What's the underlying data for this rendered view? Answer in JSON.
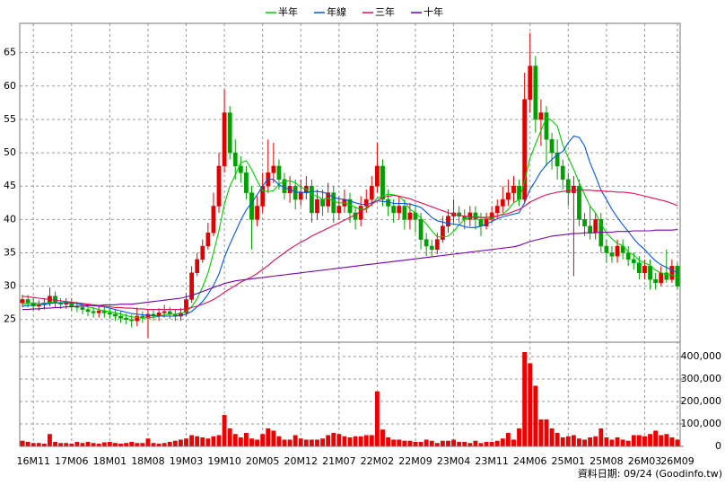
{
  "chart_data": {
    "type": "candlestick",
    "legend": "top",
    "grid": true,
    "up_color": "#e00000",
    "down_color": "#00a000",
    "categories": [
      null,
      null,
      "16M11",
      null,
      null,
      null,
      null,
      null,
      null,
      "17M06",
      null,
      null,
      null,
      null,
      null,
      null,
      "18M01",
      null,
      null,
      null,
      null,
      null,
      null,
      "18M08",
      null,
      null,
      null,
      null,
      null,
      null,
      "19M03",
      null,
      null,
      null,
      null,
      null,
      null,
      "19M10",
      null,
      null,
      null,
      null,
      null,
      null,
      "20M05",
      null,
      null,
      null,
      null,
      null,
      null,
      "20M12",
      null,
      null,
      null,
      null,
      null,
      null,
      "21M07",
      null,
      null,
      null,
      null,
      null,
      null,
      "22M02",
      null,
      null,
      null,
      null,
      null,
      null,
      "22M09",
      null,
      null,
      null,
      null,
      null,
      null,
      "23M04",
      null,
      null,
      null,
      null,
      null,
      null,
      "23M11",
      null,
      null,
      null,
      null,
      null,
      null,
      "24M06",
      null,
      null,
      null,
      null,
      null,
      null,
      "25M01",
      null,
      null,
      null,
      null,
      null,
      null,
      "25M08",
      null,
      null,
      null,
      null,
      null,
      null,
      "26M03",
      null,
      null,
      null,
      null,
      null,
      "26M09"
    ],
    "open": [
      27.5,
      28,
      27.5,
      27,
      27.2,
      27.5,
      28.5,
      27.5,
      27.3,
      27.5,
      27,
      26.8,
      26.5,
      26.2,
      26,
      26.3,
      26,
      25.8,
      25.5,
      25.2,
      25,
      24.8,
      25.5,
      25.2,
      25.8,
      25.5,
      26,
      26.2,
      25.8,
      25.5,
      26,
      28,
      32,
      34,
      36,
      38,
      42,
      48,
      56,
      50,
      48,
      47,
      44,
      40,
      42,
      45,
      47,
      48,
      46,
      44,
      45,
      43,
      44,
      45,
      41,
      43,
      42,
      44,
      41,
      42,
      43,
      41,
      40,
      42,
      43,
      45,
      48,
      43,
      42,
      41,
      42,
      40,
      41,
      40,
      37,
      36,
      35.5,
      37,
      39,
      40.5,
      41,
      40.5,
      40,
      41,
      40,
      39,
      40,
      41,
      42,
      43,
      44,
      45,
      43,
      58,
      63,
      55,
      56,
      52,
      50,
      48,
      46,
      44,
      45,
      40,
      39,
      38,
      40,
      36,
      35,
      34.5,
      36,
      35,
      34,
      33.5,
      32,
      33,
      31,
      30.5,
      32,
      31,
      33
    ],
    "high": [
      28.7,
      28.7,
      28.2,
      27.9,
      28.2,
      29.8,
      29.2,
      28.2,
      28.2,
      28.2,
      27.7,
      27.5,
      27.2,
      26.9,
      27,
      27,
      26.7,
      26.5,
      26.2,
      25.9,
      25.7,
      26.8,
      26.2,
      26.5,
      26.5,
      26.7,
      27.2,
      26.9,
      26.5,
      26.7,
      29,
      33,
      35,
      37,
      39.5,
      44,
      50,
      59.5,
      57,
      52,
      49.5,
      48,
      45,
      43.5,
      47,
      52,
      51.5,
      49,
      47,
      46.5,
      46,
      46,
      46.5,
      46,
      44.5,
      44.5,
      45.5,
      45,
      43.5,
      44.5,
      44,
      42,
      43.5,
      44.5,
      46.5,
      51.5,
      49,
      44.5,
      43,
      43.5,
      43,
      42.5,
      42,
      41,
      38,
      37,
      38,
      40.5,
      41.5,
      43,
      42,
      41.5,
      42,
      42,
      41,
      41,
      42,
      43,
      45,
      46,
      46.5,
      46,
      62,
      68,
      64.5,
      58,
      57,
      53,
      52,
      49,
      47,
      46.5,
      46,
      41,
      42,
      41,
      41,
      37,
      36,
      37,
      37,
      36,
      35,
      34.5,
      34,
      34,
      32,
      33,
      35.5,
      34,
      33.5
    ],
    "low": [
      26.8,
      26.8,
      26.3,
      26.3,
      26.5,
      27,
      26.8,
      26.6,
      26.6,
      26.3,
      26.1,
      25.8,
      25.5,
      25.3,
      25.3,
      25.3,
      25.1,
      24.8,
      24.5,
      24.3,
      23.8,
      24,
      24.5,
      22.2,
      24.8,
      24.8,
      25.3,
      25.1,
      24.8,
      24.8,
      25.5,
      27.5,
      31.5,
      33.5,
      35.5,
      37.5,
      41,
      47,
      49,
      46,
      45.5,
      43,
      35.5,
      39,
      41,
      44,
      45.5,
      44.5,
      43,
      42.5,
      41.5,
      42,
      43,
      39.5,
      40,
      40.5,
      41,
      39.5,
      40,
      41,
      39.5,
      38.5,
      39,
      41,
      42,
      44,
      42,
      40.5,
      39.5,
      40,
      38.5,
      38.5,
      38,
      35.5,
      34.5,
      34.5,
      34.8,
      36.5,
      38,
      39.5,
      39.5,
      38.5,
      39,
      38.5,
      37.5,
      38.5,
      39.5,
      40,
      41,
      42,
      42.5,
      42,
      42.5,
      56,
      53,
      51,
      48,
      47.5,
      46,
      44.5,
      42,
      31.5,
      39,
      37.5,
      37,
      37,
      35,
      33.5,
      33.5,
      33.5,
      34,
      33,
      32.5,
      31,
      31,
      29.5,
      29.5,
      30,
      30.5,
      30.5,
      29.5
    ],
    "close": [
      28,
      27.5,
      27,
      27.2,
      27.5,
      28.5,
      27.5,
      27.3,
      27.5,
      27,
      26.8,
      26.5,
      26.2,
      26,
      26.3,
      26,
      25.8,
      25.5,
      25.2,
      25,
      24.8,
      25.5,
      25.2,
      25.8,
      25.5,
      26,
      26.2,
      25.8,
      25.5,
      26,
      28,
      32,
      34,
      36,
      38,
      42,
      48,
      56,
      50,
      48,
      47,
      44,
      40,
      42,
      45,
      47,
      48,
      46,
      44,
      45,
      43,
      44,
      45,
      41,
      43,
      42,
      44,
      41,
      42,
      43,
      41,
      40,
      42,
      43,
      45,
      48,
      43,
      42,
      41,
      42,
      40,
      41,
      40,
      37,
      36,
      35.5,
      37,
      39,
      40.5,
      41,
      40.5,
      40,
      41,
      40,
      39,
      40,
      41,
      42,
      43,
      44,
      45,
      43,
      58,
      63,
      55,
      56,
      52,
      50,
      48,
      46,
      44,
      45,
      40,
      39,
      38,
      40,
      36,
      35,
      34.5,
      36,
      35,
      34,
      33.5,
      32,
      33,
      31,
      30.5,
      32,
      31,
      33,
      30
    ],
    "series": [
      {
        "name": "半年",
        "color": "#00cc00",
        "values": [
          27.3,
          27.4,
          27.5,
          27.4,
          27.4,
          27.6,
          27.5,
          27.5,
          27.6,
          27.5,
          27.4,
          27.1,
          26.9,
          26.7,
          26.5,
          26.3,
          26.2,
          26.0,
          25.8,
          25.6,
          25.4,
          25.3,
          25.2,
          25.3,
          25.3,
          25.5,
          25.7,
          25.8,
          25.8,
          25.9,
          26.2,
          26.9,
          28.1,
          29.9,
          32.0,
          35.0,
          38.3,
          42.3,
          45.0,
          46.7,
          48.5,
          48.8,
          47.5,
          45.8,
          44.3,
          44.2,
          44.3,
          45.3,
          45.7,
          45.8,
          45.5,
          44.8,
          44.5,
          43.7,
          43.5,
          43.0,
          43.2,
          42.7,
          42.5,
          42.5,
          42.2,
          41.8,
          41.5,
          41.5,
          42.3,
          43.2,
          43.5,
          43.8,
          43.7,
          43.5,
          42.7,
          41.5,
          41.0,
          40.2,
          39.3,
          38.3,
          37.4,
          37.4,
          37.5,
          38.2,
          39.2,
          40.0,
          40.3,
          40.5,
          40.3,
          40.1,
          40.2,
          40.5,
          40.8,
          41.5,
          42.5,
          43.0,
          45.7,
          49.2,
          51.3,
          53.3,
          55.3,
          54.8,
          54.0,
          51.2,
          49.3,
          47.5,
          45.5,
          43.7,
          42.0,
          41.0,
          39.3,
          38.0,
          37.1,
          36.4,
          36.1,
          35.1,
          34.7,
          33.9,
          33.5,
          33.1,
          32.4,
          32.0,
          31.7,
          31.7,
          31.3
        ]
      },
      {
        "name": "年線",
        "color": "#0055ee",
        "values": [
          27.0,
          27.1,
          27.2,
          27.2,
          27.3,
          27.4,
          27.5,
          27.5,
          27.5,
          27.5,
          27.4,
          27.3,
          27.2,
          27.1,
          27.0,
          26.9,
          26.7,
          26.5,
          26.3,
          26.1,
          25.9,
          25.8,
          25.7,
          25.6,
          25.6,
          25.5,
          25.5,
          25.5,
          25.5,
          25.6,
          25.8,
          26.2,
          26.9,
          27.7,
          28.8,
          30.1,
          31.8,
          34.3,
          36.3,
          38.1,
          39.9,
          41.4,
          42.5,
          43.7,
          45.0,
          46.1,
          46.0,
          45.2,
          44.8,
          44.5,
          44.1,
          44.1,
          44.0,
          44.2,
          44.2,
          44.1,
          43.8,
          43.3,
          43.1,
          43.0,
          42.8,
          42.5,
          42.3,
          42.2,
          42.5,
          42.8,
          42.7,
          42.6,
          42.4,
          42.4,
          42.4,
          42.3,
          42.1,
          41.8,
          41.1,
          40.3,
          39.8,
          39.6,
          39.4,
          39.3,
          39.2,
          38.9,
          38.8,
          38.8,
          39.0,
          39.3,
          39.7,
          40.1,
          40.4,
          40.6,
          40.8,
          41.0,
          42.5,
          44.5,
          45.8,
          47.2,
          48.2,
          49.0,
          49.7,
          50.2,
          51.5,
          52.5,
          52.3,
          51.0,
          48.5,
          46.5,
          44.4,
          43.0,
          41.5,
          40.3,
          39.2,
          38.2,
          37.1,
          36.2,
          35.5,
          34.6,
          33.8,
          33.2,
          32.8,
          32.4,
          32.0
        ]
      },
      {
        "name": "三年",
        "color": "#dd1155",
        "values": [
          28.5,
          28.4,
          28.3,
          28.2,
          28.1,
          28.0,
          27.9,
          27.8,
          27.7,
          27.6,
          27.5,
          27.4,
          27.3,
          27.2,
          27.1,
          27.0,
          26.9,
          26.8,
          26.8,
          26.7,
          26.7,
          26.6,
          26.6,
          26.5,
          26.5,
          26.5,
          26.5,
          26.5,
          26.5,
          26.5,
          26.6,
          26.8,
          27.0,
          27.3,
          27.6,
          28.0,
          28.5,
          29.1,
          29.6,
          30.1,
          30.6,
          31.0,
          31.4,
          31.9,
          32.5,
          33.1,
          33.8,
          34.4,
          35.0,
          35.6,
          36.1,
          36.6,
          37.0,
          37.5,
          37.9,
          38.3,
          38.7,
          39.1,
          39.5,
          39.9,
          40.3,
          40.7,
          41.2,
          41.7,
          42.3,
          42.8,
          43.3,
          43.5,
          43.6,
          43.5,
          43.3,
          43.1,
          42.8,
          42.5,
          42.2,
          41.9,
          41.6,
          41.3,
          41.0,
          40.8,
          40.6,
          40.5,
          40.4,
          40.3,
          40.3,
          40.3,
          40.4,
          40.5,
          40.7,
          40.9,
          41.2,
          41.5,
          42.0,
          42.6,
          43.0,
          43.4,
          43.7,
          43.9,
          44.1,
          44.2,
          44.3,
          44.4,
          44.4,
          44.4,
          44.4,
          44.3,
          44.3,
          44.2,
          44.2,
          44.1,
          44.1,
          44.0,
          43.9,
          43.7,
          43.5,
          43.3,
          43.1,
          42.9,
          42.7,
          42.4,
          42.1
        ]
      },
      {
        "name": "十年",
        "color": "#7700aa",
        "values": [
          26.5,
          26.5,
          26.6,
          26.6,
          26.7,
          26.7,
          26.8,
          26.8,
          26.9,
          26.9,
          27.0,
          27.0,
          27.1,
          27.1,
          27.1,
          27.2,
          27.2,
          27.2,
          27.3,
          27.3,
          27.3,
          27.4,
          27.5,
          27.6,
          27.7,
          27.8,
          27.9,
          28.0,
          28.1,
          28.2,
          28.4,
          28.6,
          28.9,
          29.2,
          29.5,
          29.8,
          30.1,
          30.4,
          30.6,
          30.8,
          30.9,
          31.0,
          31.1,
          31.2,
          31.3,
          31.4,
          31.5,
          31.6,
          31.7,
          31.8,
          31.9,
          32.0,
          32.1,
          32.2,
          32.3,
          32.4,
          32.5,
          32.6,
          32.7,
          32.8,
          32.9,
          33.0,
          33.1,
          33.2,
          33.3,
          33.4,
          33.5,
          33.6,
          33.7,
          33.8,
          33.9,
          34.0,
          34.1,
          34.2,
          34.3,
          34.4,
          34.5,
          34.6,
          34.7,
          34.8,
          34.9,
          35.0,
          35.1,
          35.2,
          35.3,
          35.4,
          35.5,
          35.6,
          35.7,
          35.8,
          35.9,
          36.1,
          36.4,
          36.7,
          36.9,
          37.1,
          37.3,
          37.5,
          37.6,
          37.7,
          37.8,
          37.9,
          37.9,
          38.0,
          38.0,
          38.0,
          38.1,
          38.1,
          38.1,
          38.2,
          38.2,
          38.2,
          38.3,
          38.3,
          38.3,
          38.3,
          38.4,
          38.4,
          38.4,
          38.4,
          38.5
        ]
      }
    ],
    "ylim": [
      21.6,
      69.4
    ],
    "yticks": [
      25,
      30,
      35,
      40,
      45,
      50,
      55,
      60,
      65
    ],
    "volume": {
      "color": "#ee0000",
      "values": [
        25000,
        20000,
        15000,
        15000,
        12000,
        55000,
        20000,
        15000,
        15000,
        12000,
        20000,
        15000,
        20000,
        15000,
        12000,
        18000,
        20000,
        15000,
        12000,
        15000,
        20000,
        15000,
        15000,
        35000,
        15000,
        12000,
        15000,
        20000,
        25000,
        30000,
        35000,
        50000,
        45000,
        40000,
        35000,
        45000,
        50000,
        140000,
        80000,
        55000,
        40000,
        60000,
        35000,
        30000,
        55000,
        80000,
        70000,
        45000,
        30000,
        30000,
        50000,
        35000,
        30000,
        30000,
        30000,
        35000,
        50000,
        60000,
        55000,
        45000,
        40000,
        45000,
        45000,
        50000,
        50000,
        245000,
        75000,
        40000,
        30000,
        30000,
        25000,
        25000,
        20000,
        20000,
        30000,
        25000,
        15000,
        25000,
        25000,
        30000,
        20000,
        20000,
        15000,
        25000,
        15000,
        20000,
        20000,
        25000,
        35000,
        60000,
        30000,
        80000,
        420000,
        370000,
        270000,
        120000,
        120000,
        80000,
        60000,
        40000,
        45000,
        50000,
        35000,
        30000,
        40000,
        45000,
        80000,
        40000,
        30000,
        40000,
        30000,
        25000,
        50000,
        50000,
        45000,
        55000,
        70000,
        50000,
        55000,
        40000,
        30000
      ],
      "ylim": [
        0,
        464000
      ],
      "yticks": [
        0,
        {
          "value": 100000,
          "label": "100,000"
        },
        {
          "value": 200000,
          "label": "200,000"
        },
        {
          "value": 300000,
          "label": "300,000"
        },
        {
          "value": 400000,
          "label": "400,000"
        }
      ]
    },
    "source": "資料日期: 09/24  (Goodinfo.tw)"
  }
}
